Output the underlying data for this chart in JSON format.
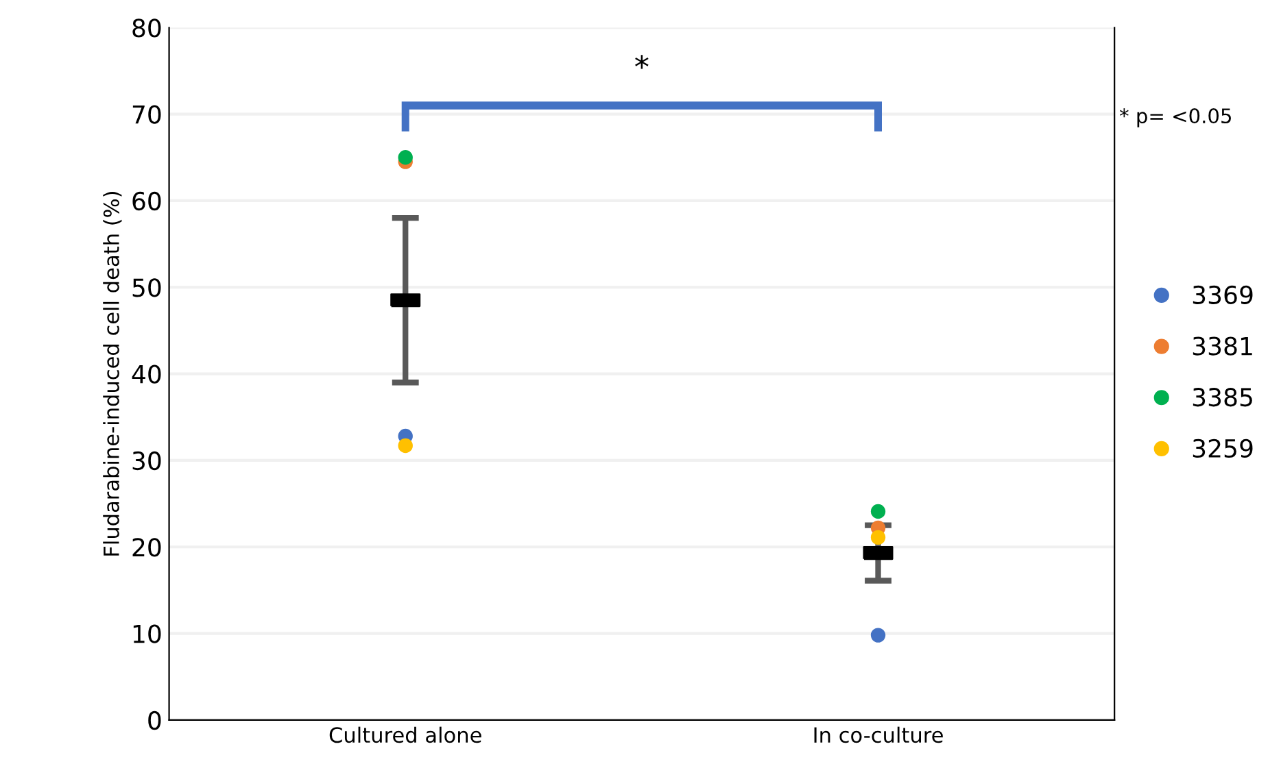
{
  "chart_data": {
    "type": "scatter",
    "ylabel": "Fludarabine-induced cell death (%)",
    "categories": [
      "Cultured alone",
      "In co-culture"
    ],
    "series": [
      {
        "name": "3369",
        "color": "#4472c4",
        "values": [
          32.8,
          9.8
        ]
      },
      {
        "name": "3381",
        "color": "#ed7d31",
        "values": [
          64.5,
          22.2
        ]
      },
      {
        "name": "3385",
        "color": "#00b050",
        "values": [
          65,
          24.1
        ]
      },
      {
        "name": "3259",
        "color": "#ffc000",
        "values": [
          31.7,
          21.1
        ]
      },
      {
        "color": "#000000",
        "marker": "square",
        "values": [
          48.5,
          19.3
        ],
        "errors": [
          9.5,
          3.2
        ]
      }
    ],
    "ylim": [
      0,
      80
    ],
    "yticks": [
      0,
      10,
      20,
      30,
      40,
      50,
      60,
      70,
      80
    ],
    "grid": "y",
    "legend": "right",
    "marker": "circle",
    "annotations": [
      "*",
      "* p= <0.05"
    ]
  }
}
